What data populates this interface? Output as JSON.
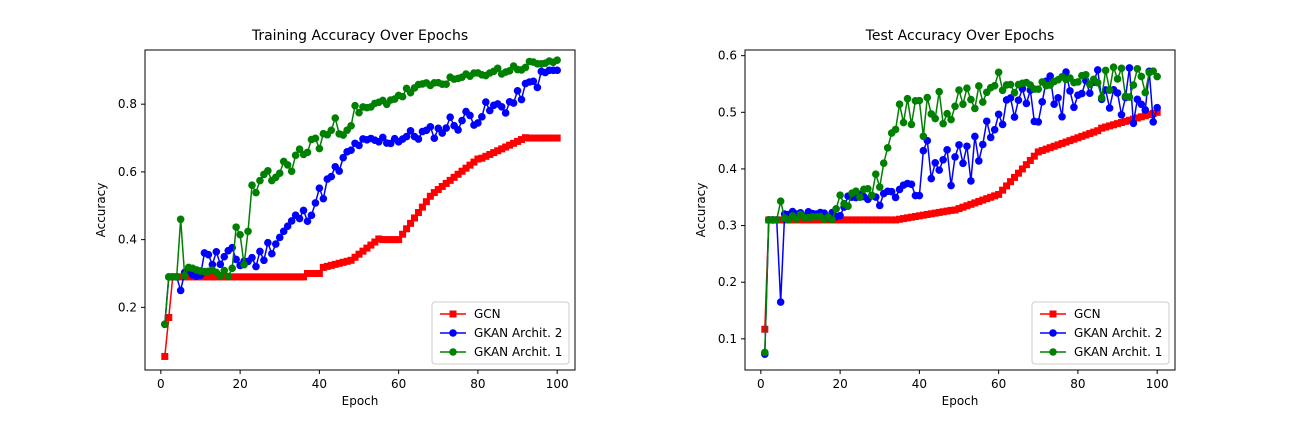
{
  "chart_data": [
    {
      "type": "line",
      "title": "Training Accuracy Over Epochs",
      "xlabel": "Epoch",
      "ylabel": "Accuracy",
      "xlim": [
        -4,
        104.5
      ],
      "ylim": [
        0.015,
        0.96
      ],
      "xticks": [
        0,
        20,
        40,
        60,
        80,
        100
      ],
      "yticks": [
        0.2,
        0.4,
        0.6,
        0.8
      ],
      "ytick_labels": [
        "0.2",
        "0.4",
        "0.6",
        "0.8"
      ],
      "legend_position": "lower-right",
      "series": [
        {
          "name": "GCN",
          "color": "#ff0000",
          "marker": "square",
          "shape": "gcn_train"
        },
        {
          "name": "GKAN Archit. 2",
          "color": "#0000ff",
          "marker": "circle",
          "shape": "gkan2_train"
        },
        {
          "name": "GKAN Archit. 1",
          "color": "#008000",
          "marker": "circle",
          "shape": "gkan1_train"
        }
      ],
      "x_range": [
        1,
        100
      ]
    },
    {
      "type": "line",
      "title": "Test Accuracy Over Epochs",
      "xlabel": "Epoch",
      "ylabel": "Accuracy",
      "xlim": [
        -4,
        104.5
      ],
      "ylim": [
        0.045,
        0.61
      ],
      "xticks": [
        0,
        20,
        40,
        60,
        80,
        100
      ],
      "yticks": [
        0.1,
        0.2,
        0.3,
        0.4,
        0.5,
        0.6
      ],
      "ytick_labels": [
        "0.1",
        "0.2",
        "0.3",
        "0.4",
        "0.5",
        "0.6"
      ],
      "legend_position": "lower-right",
      "series": [
        {
          "name": "GCN",
          "color": "#ff0000",
          "marker": "square",
          "shape": "gcn_test"
        },
        {
          "name": "GKAN Archit. 2",
          "color": "#0000ff",
          "marker": "circle",
          "shape": "gkan2_test"
        },
        {
          "name": "GKAN Archit. 1",
          "color": "#008000",
          "marker": "circle",
          "shape": "gkan1_test"
        }
      ],
      "x_range": [
        1,
        100
      ]
    }
  ]
}
